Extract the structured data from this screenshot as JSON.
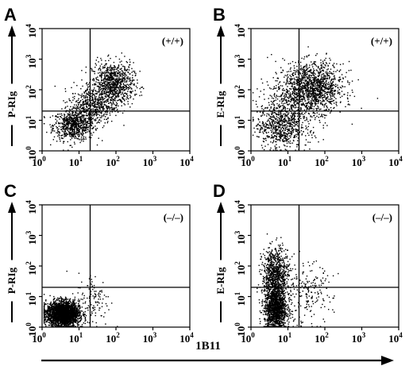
{
  "chart_data": [
    {
      "panel": "A",
      "type": "scatter",
      "genotype": "(+/+)",
      "ylabel": "P-RIg",
      "xscale": "log",
      "yscale": "log",
      "xlim": [
        1,
        10000
      ],
      "ylim": [
        1,
        10000
      ],
      "gates": {
        "x": 20,
        "y": 20
      },
      "clusters": [
        {
          "x_center_log": 0.85,
          "y_center_log": 0.85,
          "spread_x": 0.28,
          "spread_y": 0.25,
          "n": 700
        },
        {
          "x_center_log": 1.9,
          "y_center_log": 2.2,
          "spread_x": 0.28,
          "spread_y": 0.35,
          "n": 900
        },
        {
          "x_center_log": 1.35,
          "y_center_log": 1.5,
          "spread_x": 0.3,
          "spread_y": 0.3,
          "n": 500
        }
      ],
      "xticks": [
        "10^0",
        "10^1",
        "10^2",
        "10^3",
        "10^4"
      ],
      "yticks": [
        "10^0",
        "10^1",
        "10^2",
        "10^3",
        "10^4"
      ]
    },
    {
      "panel": "B",
      "type": "scatter",
      "genotype": "(+/+)",
      "ylabel": "E-RIg",
      "xscale": "log",
      "yscale": "log",
      "xlim": [
        1,
        10000
      ],
      "ylim": [
        1,
        10000
      ],
      "gates": {
        "x": 20,
        "y": 20
      },
      "clusters": [
        {
          "x_center_log": 0.75,
          "y_center_log": 0.8,
          "spread_x": 0.3,
          "spread_y": 0.35,
          "n": 550
        },
        {
          "x_center_log": 1.7,
          "y_center_log": 2.1,
          "spread_x": 0.4,
          "spread_y": 0.4,
          "n": 1200
        },
        {
          "x_center_log": 1.1,
          "y_center_log": 1.5,
          "spread_x": 0.45,
          "spread_y": 0.55,
          "n": 500
        }
      ],
      "xticks": [
        "10^0",
        "10^1",
        "10^2",
        "10^3",
        "10^4"
      ],
      "yticks": [
        "10^0",
        "10^1",
        "10^2",
        "10^3",
        "10^4"
      ]
    },
    {
      "panel": "C",
      "type": "scatter",
      "genotype": "(–/–)",
      "ylabel": "P-RIg",
      "xscale": "log",
      "yscale": "log",
      "xlim": [
        1,
        10000
      ],
      "ylim": [
        1,
        10000
      ],
      "gates": {
        "x": 20,
        "y": 20
      },
      "clusters": [
        {
          "x_center_log": 0.55,
          "y_center_log": 0.45,
          "spread_x": 0.22,
          "spread_y": 0.2,
          "n": 2600
        },
        {
          "x_center_log": 1.4,
          "y_center_log": 0.9,
          "spread_x": 0.22,
          "spread_y": 0.45,
          "n": 120
        }
      ],
      "xticks": [
        "10^0",
        "10^1",
        "10^2",
        "10^3",
        "10^4"
      ],
      "yticks": [
        "10^0",
        "10^1",
        "10^2",
        "10^3",
        "10^4"
      ]
    },
    {
      "panel": "D",
      "type": "scatter",
      "genotype": "(–/–)",
      "ylabel": "E-RIg",
      "xscale": "log",
      "yscale": "log",
      "xlim": [
        1,
        10000
      ],
      "ylim": [
        1,
        10000
      ],
      "gates": {
        "x": 20,
        "y": 20
      },
      "clusters": [
        {
          "x_center_log": 0.65,
          "y_center_log": 0.6,
          "spread_x": 0.15,
          "spread_y": 0.35,
          "n": 1300
        },
        {
          "x_center_log": 0.65,
          "y_center_log": 1.7,
          "spread_x": 0.18,
          "spread_y": 0.45,
          "n": 900
        },
        {
          "x_center_log": 1.5,
          "y_center_log": 1.1,
          "spread_x": 0.35,
          "spread_y": 0.5,
          "n": 200
        }
      ],
      "xticks": [
        "10^0",
        "10^1",
        "10^2",
        "10^3",
        "10^4"
      ],
      "yticks": [
        "10^0",
        "10^1",
        "10^2",
        "10^3",
        "10^4"
      ]
    }
  ],
  "shared_xlabel": "1B11"
}
